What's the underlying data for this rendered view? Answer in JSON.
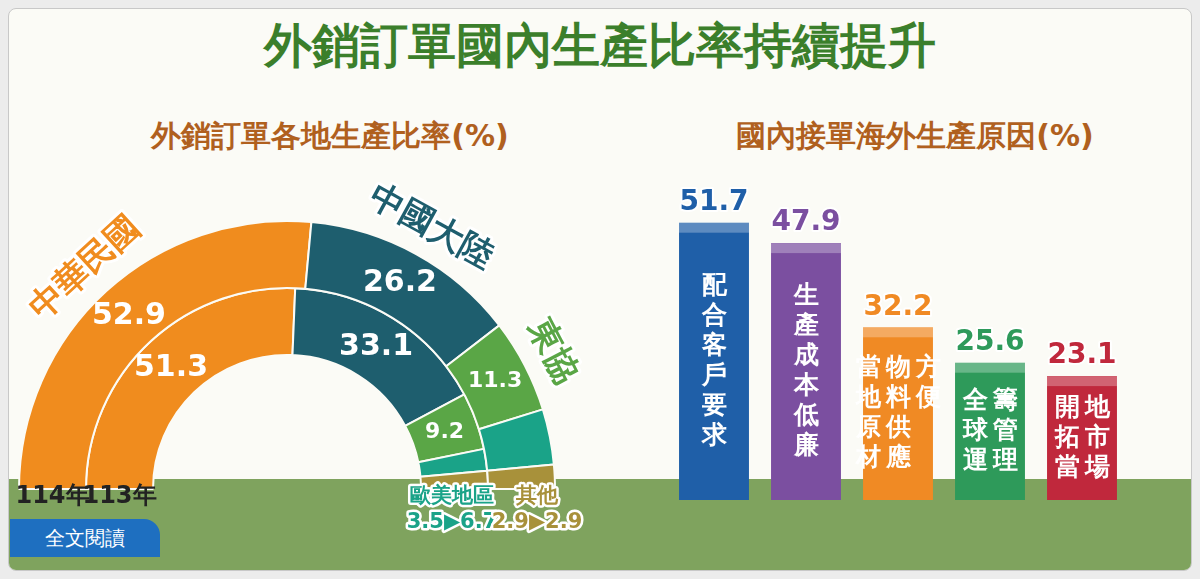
{
  "title": "外銷訂單國內生產比率持續提升",
  "button": "全文閱讀",
  "chart_data": [
    {
      "type": "doughnut",
      "title": "外銷訂單各地生產比率(%)",
      "categories": [
        "中華民國",
        "中國大陸",
        "東協",
        "歐美地區",
        "其他"
      ],
      "colors": [
        "#f08c1e",
        "#1e5e6e",
        "#5aa646",
        "#1aa388",
        "#a8913a"
      ],
      "series": [
        {
          "name": "114年",
          "values": [
            52.9,
            26.2,
            11.3,
            6.7,
            2.9
          ],
          "value_labels": [
            "52.9",
            "26.2",
            "11.3",
            null,
            null
          ]
        },
        {
          "name": "113年",
          "values": [
            51.3,
            33.1,
            9.2,
            3.5,
            2.9
          ],
          "value_labels": [
            "51.3",
            "33.1",
            "9.2",
            null,
            null
          ]
        }
      ],
      "change_labels": [
        null,
        null,
        null,
        "3.5▶6.7",
        "2.9▶2.9"
      ],
      "data_labels": true
    },
    {
      "type": "bar",
      "title": "國內接單海外生產原因(%)",
      "categories": [
        "配合客戶要求",
        "生產成本低廉",
        "當地原材物料供應方便",
        "全球運籌管理",
        "開拓當地市場"
      ],
      "values": [
        51.7,
        47.9,
        32.2,
        25.6,
        23.1
      ],
      "colors": [
        "#1f5fa8",
        "#7b4fa0",
        "#f08a24",
        "#2e9a5a",
        "#c0283c"
      ],
      "ylim": [
        0,
        55
      ],
      "data_labels": true,
      "tick_labels": false,
      "grid": false
    }
  ]
}
